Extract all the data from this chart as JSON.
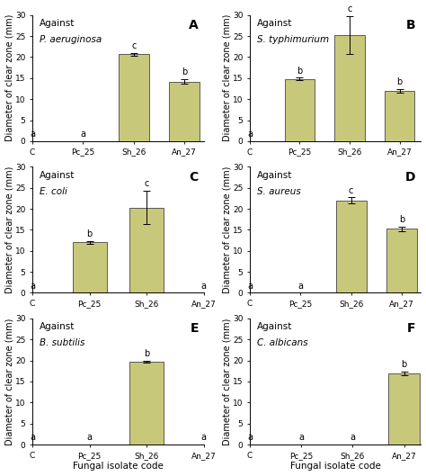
{
  "panels": [
    {
      "label": "A",
      "title_line1": "Against",
      "title_line2": "P. aeruginosa",
      "categories": [
        "C",
        "Pc_25",
        "Sh_26",
        "An_27"
      ],
      "values": [
        0,
        0,
        20.7,
        14.2
      ],
      "errors": [
        0,
        0,
        0.3,
        0.5
      ],
      "sig_labels": [
        "a",
        "a",
        "c",
        "b"
      ],
      "ylim": [
        0,
        30
      ],
      "yticks": [
        0,
        5,
        10,
        15,
        20,
        25,
        30
      ],
      "show_xlabel": false
    },
    {
      "label": "B",
      "title_line1": "Against",
      "title_line2": "S. typhimurium",
      "categories": [
        "C",
        "Pc_25",
        "Sh_26",
        "An_27"
      ],
      "values": [
        0,
        14.8,
        25.2,
        12.0
      ],
      "errors": [
        0,
        0.3,
        4.5,
        0.4
      ],
      "sig_labels": [
        "a",
        "b",
        "c",
        "b"
      ],
      "ylim": [
        0,
        30
      ],
      "yticks": [
        0,
        5,
        10,
        15,
        20,
        25,
        30
      ],
      "show_xlabel": false
    },
    {
      "label": "C",
      "title_line1": "Against",
      "title_line2": "E. coli",
      "categories": [
        "C",
        "Pc_25",
        "Sh_26",
        "An_27"
      ],
      "values": [
        0,
        12.0,
        20.3,
        0
      ],
      "errors": [
        0,
        0.3,
        4.0,
        0
      ],
      "sig_labels": [
        "a",
        "b",
        "c",
        "a"
      ],
      "ylim": [
        0,
        30
      ],
      "yticks": [
        0,
        5,
        10,
        15,
        20,
        25,
        30
      ],
      "show_xlabel": false
    },
    {
      "label": "D",
      "title_line1": "Against",
      "title_line2": "S. aureus",
      "categories": [
        "C",
        "Pc_25",
        "Sh_26",
        "An_27"
      ],
      "values": [
        0,
        0,
        22.0,
        15.2
      ],
      "errors": [
        0,
        0,
        0.7,
        0.5
      ],
      "sig_labels": [
        "a",
        "a",
        "c",
        "b"
      ],
      "ylim": [
        0,
        30
      ],
      "yticks": [
        0,
        5,
        10,
        15,
        20,
        25,
        30
      ],
      "show_xlabel": false
    },
    {
      "label": "E",
      "title_line1": "Against",
      "title_line2": "B. subtilis",
      "categories": [
        "C",
        "Pc_25",
        "Sh_26",
        "An_27"
      ],
      "values": [
        0,
        0,
        19.7,
        0
      ],
      "errors": [
        0,
        0,
        0.3,
        0
      ],
      "sig_labels": [
        "a",
        "a",
        "b",
        "a"
      ],
      "ylim": [
        0,
        30
      ],
      "yticks": [
        0,
        5,
        10,
        15,
        20,
        25,
        30
      ],
      "show_xlabel": true
    },
    {
      "label": "F",
      "title_line1": "Against",
      "title_line2": "C. albicans",
      "categories": [
        "C",
        "Pc_25",
        "Sh_26",
        "An_27"
      ],
      "values": [
        0,
        0,
        0,
        17.0
      ],
      "errors": [
        0,
        0,
        0,
        0.4
      ],
      "sig_labels": [
        "a",
        "a",
        "a",
        "b"
      ],
      "ylim": [
        0,
        30
      ],
      "yticks": [
        0,
        5,
        10,
        15,
        20,
        25,
        30
      ],
      "show_xlabel": true
    }
  ],
  "bar_color": "#c8c87a",
  "bar_edge_color": "#444444",
  "bar_width": 0.6,
  "ylabel": "Diameter of clear zone (mm)",
  "xlabel": "Fungal isolate code",
  "background_color": "#ffffff",
  "error_capsize": 3,
  "sig_fontsize": 7,
  "axis_label_fontsize": 7,
  "tick_fontsize": 6.5,
  "panel_label_fontsize": 10,
  "title_fontsize": 7.5
}
